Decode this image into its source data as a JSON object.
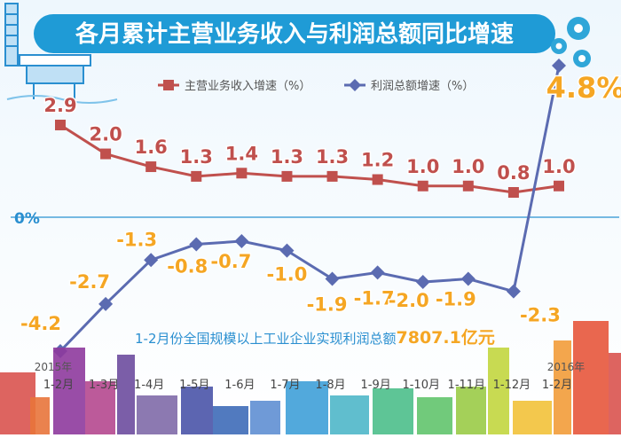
{
  "colors": {
    "revenue_line": "#c0504d",
    "profit_line": "#5b6bb1",
    "revenue_label": "#c0504d",
    "profit_label": "#f5a623",
    "title_bg": "#1f9bd6",
    "zero_line": "#4aa3d8",
    "note_text": "#2a8fd0",
    "note_value": "#f5a623"
  },
  "chart_data": {
    "type": "line",
    "title": "各月累计主营业务收入与利润总额同比增速",
    "categories": [
      "1-2月",
      "1-3月",
      "1-4月",
      "1-5月",
      "1-6月",
      "1-7月",
      "1-8月",
      "1-9月",
      "1-10月",
      "1-11月",
      "1-12月",
      "1-2月"
    ],
    "year_labels": [
      "2015年",
      "2016年"
    ],
    "series": [
      {
        "name": "主营业务收入增速（%）",
        "values": [
          2.9,
          2.0,
          1.6,
          1.3,
          1.4,
          1.3,
          1.3,
          1.2,
          1.0,
          1.0,
          0.8,
          1.0
        ],
        "labels": [
          "2.9",
          "2.0",
          "1.6",
          "1.3",
          "1.4",
          "1.3",
          "1.3",
          "1.2",
          "1.0",
          "1.0",
          "0.8",
          "1.0"
        ],
        "marker": "square"
      },
      {
        "name": "利润总额增速（%）",
        "values": [
          -4.2,
          -2.7,
          -1.3,
          -0.8,
          -0.7,
          -1.0,
          -1.9,
          -1.7,
          -2.0,
          -1.9,
          -2.3,
          4.8
        ],
        "labels": [
          "-4.2",
          "-2.7",
          "-1.3",
          "-0.8",
          "-0.7",
          "-1.0",
          "-1.9",
          "-1.7",
          "-2.0",
          "-1.9",
          "-2.3",
          "4.8%"
        ],
        "marker": "diamond"
      }
    ],
    "zero_label": "0%",
    "annotation": {
      "text": "1-2月份全国规模以上工业企业实现利润总额",
      "value": "7807.1亿元"
    },
    "legend_position": "top",
    "grid": false
  }
}
